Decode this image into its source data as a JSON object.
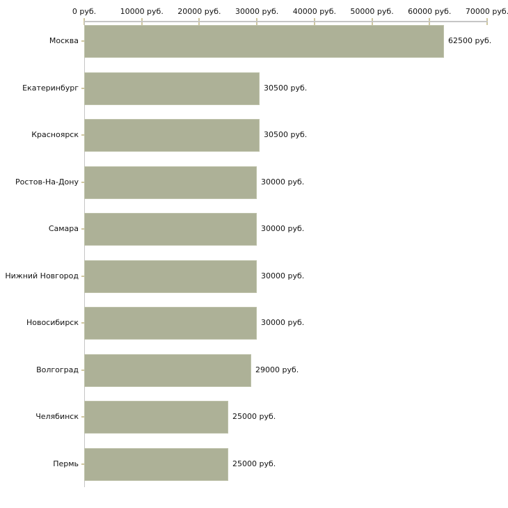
{
  "chart_data": {
    "type": "bar",
    "orientation": "horizontal",
    "unit_suffix": " руб.",
    "categories": [
      "Москва",
      "Екатеринбург",
      "Красноярск",
      "Ростов-На-Дону",
      "Самара",
      "Нижний Новгород",
      "Новосибирск",
      "Волгоград",
      "Челябинск",
      "Пермь"
    ],
    "values": [
      62500,
      30500,
      30500,
      30000,
      30000,
      30000,
      30000,
      29000,
      25000,
      25000
    ],
    "value_labels": [
      "62500 руб.",
      "30500 руб.",
      "30500 руб.",
      "30000 руб.",
      "30000 руб.",
      "30000 руб.",
      "30000 руб.",
      "29000 руб.",
      "25000 руб.",
      "25000 руб."
    ],
    "x_axis": {
      "position": "top",
      "min": 0,
      "max": 70000,
      "tick_values": [
        0,
        10000,
        20000,
        30000,
        40000,
        50000,
        60000,
        70000
      ],
      "tick_labels": [
        "0 руб.",
        "10000 руб.",
        "20000 руб.",
        "30000 руб.",
        "40000 руб.",
        "50000 руб.",
        "60000 руб.",
        "70000 руб."
      ]
    },
    "legend": "none",
    "grid": "off",
    "colors": {
      "background": "#ffffff",
      "bar_fill": "#adb197",
      "bar_border": "#bdc1a9",
      "axis_line": "#c5c5c5",
      "tick_mark": "#cfc79f",
      "text": "#111111"
    }
  }
}
